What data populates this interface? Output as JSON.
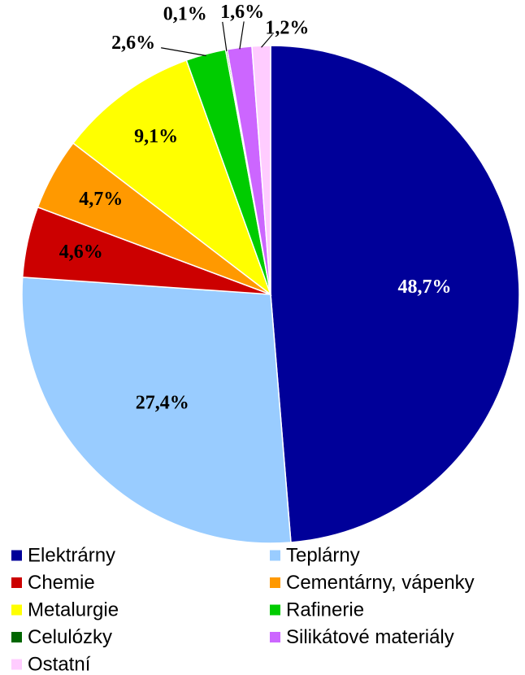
{
  "chart_data": {
    "type": "pie",
    "title": "",
    "start_angle_deg": 0,
    "direction": "clockwise",
    "legend_position": "bottom",
    "slices": [
      {
        "label": "Elektrárny",
        "value": 48.7,
        "display": "48,7%",
        "color": "#000099",
        "label_color": "#ffffff"
      },
      {
        "label": "Teplárny",
        "value": 27.4,
        "display": "27,4%",
        "color": "#99ccff",
        "label_color": "#000000"
      },
      {
        "label": "Chemie",
        "value": 4.6,
        "display": "4,6%",
        "color": "#cc0000",
        "label_color": "#000000"
      },
      {
        "label": "Cementárny, vápenky",
        "value": 4.7,
        "display": "4,7%",
        "color": "#ff9900",
        "label_color": "#000000"
      },
      {
        "label": "Metalurgie",
        "value": 9.1,
        "display": "9,1%",
        "color": "#ffff00",
        "label_color": "#000000"
      },
      {
        "label": "Rafinerie",
        "value": 2.6,
        "display": "2,6%",
        "color": "#00cc00",
        "label_color": "#000000"
      },
      {
        "label": "Celulózky",
        "value": 0.1,
        "display": "0,1%",
        "color": "#006600",
        "label_color": "#000000"
      },
      {
        "label": "Silikátové materiály",
        "value": 1.6,
        "display": "1,6%",
        "color": "#cc66ff",
        "label_color": "#000000"
      },
      {
        "label": "Ostatní",
        "value": 1.2,
        "display": "1,2%",
        "color": "#ffccff",
        "label_color": "#000000"
      }
    ]
  }
}
